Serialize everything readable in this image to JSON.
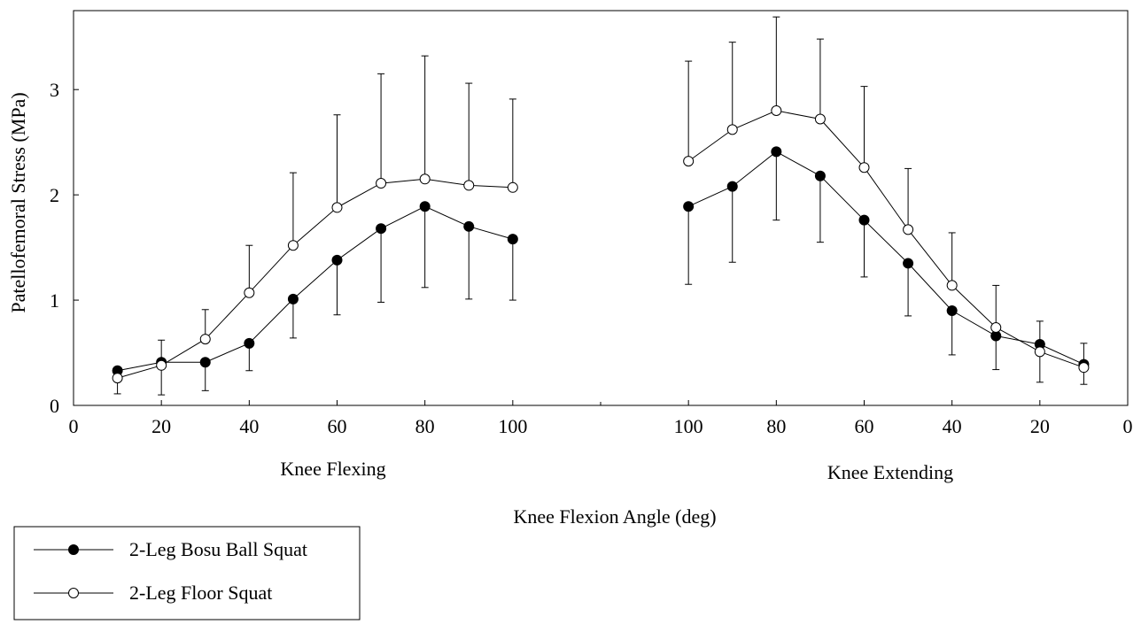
{
  "chart_data": {
    "type": "line",
    "ylabel": "Patellofemoral Stress (MPa)",
    "xlabel": "Knee Flexion Angle (deg)",
    "ylim": [
      0,
      3.75
    ],
    "yticks": [
      "0",
      "1",
      "2",
      "3"
    ],
    "grid": false,
    "legend_position": "bottom-left",
    "panels": [
      {
        "label": "Knee Flexing",
        "xlim": [
          0,
          120
        ],
        "xticks": [
          0,
          20,
          40,
          60,
          80,
          100
        ],
        "x": [
          10,
          20,
          30,
          40,
          50,
          60,
          70,
          80,
          90,
          100
        ],
        "series": [
          {
            "name": "2-Leg Bosu Ball Squat",
            "marker": "filled",
            "values": [
              0.33,
              0.41,
              0.41,
              0.59,
              1.01,
              1.38,
              1.68,
              1.89,
              1.7,
              1.58
            ],
            "err_low": [
              0.11,
              0.1,
              0.14,
              0.33,
              0.64,
              0.86,
              0.98,
              1.12,
              1.01,
              1.0
            ],
            "err_high": [
              null,
              0.62,
              null,
              null,
              null,
              null,
              null,
              null,
              null,
              null
            ]
          },
          {
            "name": "2-Leg Floor Squat",
            "marker": "open",
            "values": [
              0.26,
              0.38,
              0.63,
              1.07,
              1.52,
              1.88,
              2.11,
              2.15,
              2.09,
              2.07
            ],
            "err_low": [
              null,
              null,
              null,
              null,
              null,
              null,
              null,
              null,
              null,
              null
            ],
            "err_high": [
              null,
              null,
              0.91,
              1.52,
              2.21,
              2.76,
              3.15,
              3.32,
              3.06,
              2.91
            ]
          }
        ]
      },
      {
        "label": "Knee Extending",
        "xlim": [
          120,
          0
        ],
        "xticks": [
          100,
          80,
          60,
          40,
          20,
          0
        ],
        "x": [
          100,
          90,
          80,
          70,
          60,
          50,
          40,
          30,
          20,
          10
        ],
        "series": [
          {
            "name": "2-Leg Bosu Ball Squat",
            "marker": "filled",
            "values": [
              1.89,
              2.08,
              2.41,
              2.18,
              1.76,
              1.35,
              0.9,
              0.66,
              0.58,
              0.39
            ],
            "err_low": [
              1.15,
              1.36,
              1.76,
              1.55,
              1.22,
              0.85,
              0.48,
              0.34,
              0.22,
              0.2
            ],
            "err_high": [
              null,
              null,
              null,
              null,
              null,
              null,
              null,
              null,
              null,
              0.59
            ]
          },
          {
            "name": "2-Leg Floor Squat",
            "marker": "open",
            "values": [
              2.32,
              2.62,
              2.8,
              2.72,
              2.26,
              1.67,
              1.14,
              0.74,
              0.51,
              0.36
            ],
            "err_low": [
              null,
              null,
              null,
              null,
              null,
              null,
              null,
              null,
              null,
              null
            ],
            "err_high": [
              3.27,
              3.45,
              3.69,
              3.48,
              3.03,
              2.25,
              1.64,
              1.14,
              0.8,
              null
            ]
          }
        ]
      }
    ],
    "legend": [
      {
        "name": "2-Leg Bosu Ball Squat",
        "marker": "filled"
      },
      {
        "name": "2-Leg Floor Squat",
        "marker": "open"
      }
    ]
  }
}
